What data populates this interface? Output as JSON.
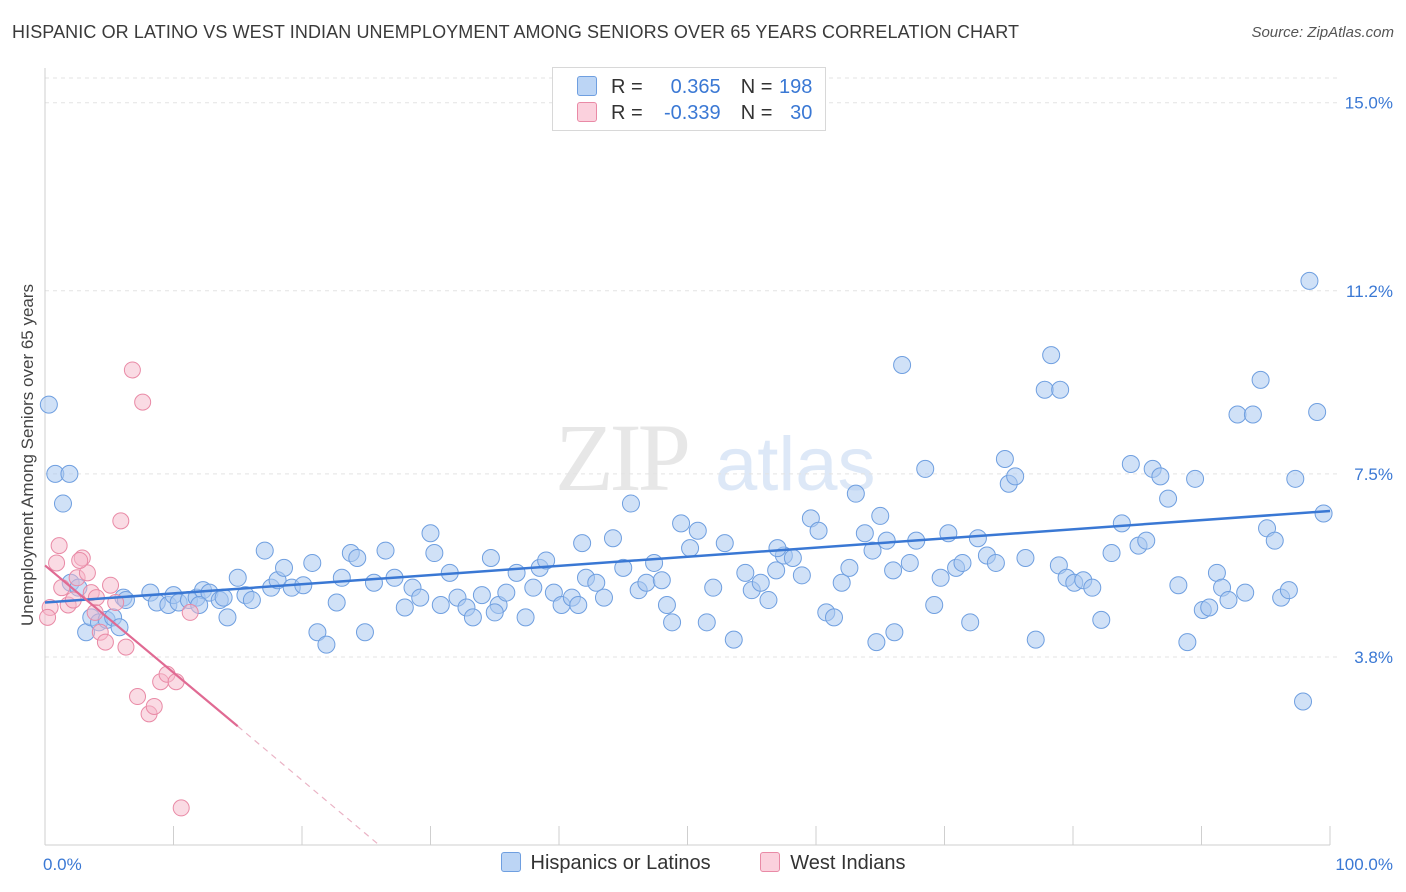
{
  "title": "HISPANIC OR LATINO VS WEST INDIAN UNEMPLOYMENT AMONG SENIORS OVER 65 YEARS CORRELATION CHART",
  "source": "Source: ZipAtlas.com",
  "watermark": {
    "zip": "ZIP",
    "atlas": "atlas"
  },
  "legend_top": {
    "rows": [
      {
        "r_label": "R =",
        "r_value": "0.365",
        "n_label": "N =",
        "n_value": "198"
      },
      {
        "r_label": "R =",
        "r_value": "-0.339",
        "n_label": "N =",
        "n_value": "30"
      }
    ]
  },
  "legend_bottom": [
    {
      "label": "Hispanics or Latinos"
    },
    {
      "label": "West Indians"
    }
  ],
  "colors": {
    "blue_fill": "#a9c8f0",
    "blue_stroke": "#6f9fe0",
    "blue_line": "#3a78d4",
    "pink_fill": "#f6b8c9",
    "pink_stroke": "#e98aa6",
    "pink_line": "#e06a93",
    "tick_label": "#3a78d4",
    "grid": "#e3e3e3"
  },
  "chart_data": {
    "type": "scatter",
    "title": "HISPANIC OR LATINO VS WEST INDIAN UNEMPLOYMENT AMONG SENIORS OVER 65 YEARS CORRELATION CHART",
    "xlabel": "",
    "ylabel": "Unemployment Among Seniors over 65 years",
    "xlim": [
      0,
      100
    ],
    "ylim": [
      0,
      15.5
    ],
    "x_tick_labels": [
      {
        "value": 0,
        "label": "0.0%"
      },
      {
        "value": 100,
        "label": "100.0%"
      }
    ],
    "y_tick_labels": [
      {
        "value": 3.8,
        "label": "3.8%"
      },
      {
        "value": 7.5,
        "label": "7.5%"
      },
      {
        "value": 11.2,
        "label": "11.2%"
      },
      {
        "value": 15.0,
        "label": "15.0%"
      }
    ],
    "grid": "horizontal dashed",
    "legend_placement": "top-center and bottom",
    "series": [
      {
        "name": "Hispanics or Latinos",
        "color": "#6f9fe0",
        "trend": {
          "x": [
            0,
            100
          ],
          "y": [
            4.9,
            6.75
          ]
        },
        "points": [
          [
            0.3,
            8.9
          ],
          [
            0.8,
            7.5
          ],
          [
            1.4,
            6.9
          ],
          [
            2.0,
            5.3
          ],
          [
            2.6,
            5.2
          ],
          [
            3.2,
            4.3
          ],
          [
            3.6,
            4.6
          ],
          [
            4.2,
            4.5
          ],
          [
            4.8,
            4.55
          ],
          [
            5.3,
            4.6
          ],
          [
            5.8,
            4.4
          ],
          [
            6.1,
            5.0
          ],
          [
            6.3,
            4.95
          ],
          [
            8.2,
            5.1
          ],
          [
            8.7,
            4.9
          ],
          [
            9.6,
            4.85
          ],
          [
            10.0,
            5.05
          ],
          [
            10.4,
            4.9
          ],
          [
            11.2,
            4.95
          ],
          [
            11.8,
            5.0
          ],
          [
            12.3,
            5.15
          ],
          [
            12.8,
            5.1
          ],
          [
            13.6,
            4.95
          ],
          [
            13.9,
            5.0
          ],
          [
            14.2,
            4.6
          ],
          [
            15.0,
            5.4
          ],
          [
            15.6,
            5.05
          ],
          [
            16.1,
            4.95
          ],
          [
            17.1,
            5.95
          ],
          [
            17.6,
            5.2
          ],
          [
            18.1,
            5.35
          ],
          [
            18.6,
            5.6
          ],
          [
            19.2,
            5.2
          ],
          [
            20.1,
            5.25
          ],
          [
            20.8,
            5.7
          ],
          [
            21.2,
            4.3
          ],
          [
            21.9,
            4.05
          ],
          [
            22.7,
            4.9
          ],
          [
            23.1,
            5.4
          ],
          [
            23.8,
            5.9
          ],
          [
            24.3,
            5.8
          ],
          [
            24.9,
            4.3
          ],
          [
            25.6,
            5.3
          ],
          [
            26.5,
            5.95
          ],
          [
            27.2,
            5.4
          ],
          [
            28.0,
            4.8
          ],
          [
            28.6,
            5.2
          ],
          [
            29.2,
            5.0
          ],
          [
            30.0,
            6.3
          ],
          [
            30.8,
            4.85
          ],
          [
            31.5,
            5.5
          ],
          [
            32.1,
            5.0
          ],
          [
            32.8,
            4.8
          ],
          [
            33.3,
            4.6
          ],
          [
            34.0,
            5.05
          ],
          [
            34.7,
            5.8
          ],
          [
            35.3,
            4.85
          ],
          [
            35.9,
            5.1
          ],
          [
            36.7,
            5.5
          ],
          [
            37.4,
            4.6
          ],
          [
            38.0,
            5.2
          ],
          [
            38.5,
            5.6
          ],
          [
            39.0,
            5.75
          ],
          [
            39.6,
            5.1
          ],
          [
            40.2,
            4.85
          ],
          [
            41.0,
            5.0
          ],
          [
            41.5,
            4.85
          ],
          [
            42.1,
            5.4
          ],
          [
            42.9,
            5.3
          ],
          [
            43.5,
            5.0
          ],
          [
            44.2,
            6.2
          ],
          [
            45.0,
            5.6
          ],
          [
            45.6,
            6.9
          ],
          [
            46.2,
            5.15
          ],
          [
            46.8,
            5.3
          ],
          [
            47.4,
            5.7
          ],
          [
            48.0,
            5.35
          ],
          [
            48.8,
            4.5
          ],
          [
            49.5,
            6.5
          ],
          [
            50.2,
            6.0
          ],
          [
            50.8,
            6.35
          ],
          [
            51.5,
            4.5
          ],
          [
            52.0,
            5.2
          ],
          [
            52.9,
            6.1
          ],
          [
            53.6,
            4.15
          ],
          [
            54.5,
            5.5
          ],
          [
            55.0,
            5.15
          ],
          [
            55.7,
            5.3
          ],
          [
            56.3,
            4.95
          ],
          [
            56.9,
            5.55
          ],
          [
            57.5,
            5.85
          ],
          [
            58.2,
            5.8
          ],
          [
            58.9,
            5.45
          ],
          [
            59.6,
            6.6
          ],
          [
            60.2,
            6.35
          ],
          [
            60.8,
            4.7
          ],
          [
            61.4,
            4.6
          ],
          [
            62.0,
            5.3
          ],
          [
            62.6,
            5.6
          ],
          [
            63.1,
            7.1
          ],
          [
            63.8,
            6.3
          ],
          [
            64.4,
            5.95
          ],
          [
            65.0,
            6.65
          ],
          [
            65.5,
            6.15
          ],
          [
            66.1,
            4.3
          ],
          [
            66.7,
            9.7
          ],
          [
            67.3,
            5.7
          ],
          [
            67.8,
            6.15
          ],
          [
            68.5,
            7.6
          ],
          [
            69.2,
            4.85
          ],
          [
            69.7,
            5.4
          ],
          [
            70.3,
            6.3
          ],
          [
            70.9,
            5.6
          ],
          [
            71.4,
            5.7
          ],
          [
            72.0,
            4.5
          ],
          [
            72.6,
            6.2
          ],
          [
            73.3,
            5.85
          ],
          [
            74.0,
            5.7
          ],
          [
            74.7,
            7.8
          ],
          [
            75.0,
            7.3
          ],
          [
            75.5,
            7.45
          ],
          [
            76.3,
            5.8
          ],
          [
            77.1,
            4.15
          ],
          [
            77.8,
            9.2
          ],
          [
            78.3,
            9.9
          ],
          [
            78.9,
            5.65
          ],
          [
            79.5,
            5.4
          ],
          [
            80.1,
            5.3
          ],
          [
            80.8,
            5.35
          ],
          [
            81.5,
            5.2
          ],
          [
            82.2,
            4.55
          ],
          [
            83.0,
            5.9
          ],
          [
            83.8,
            6.5
          ],
          [
            84.5,
            7.7
          ],
          [
            85.1,
            6.05
          ],
          [
            85.7,
            6.15
          ],
          [
            86.2,
            7.6
          ],
          [
            86.8,
            7.45
          ],
          [
            87.4,
            7.0
          ],
          [
            88.2,
            5.25
          ],
          [
            88.9,
            4.1
          ],
          [
            89.5,
            7.4
          ],
          [
            90.1,
            4.75
          ],
          [
            90.6,
            4.8
          ],
          [
            91.2,
            5.5
          ],
          [
            91.6,
            5.2
          ],
          [
            92.1,
            4.95
          ],
          [
            92.8,
            8.7
          ],
          [
            93.4,
            5.1
          ],
          [
            94.0,
            8.7
          ],
          [
            94.6,
            9.4
          ],
          [
            95.1,
            6.4
          ],
          [
            95.7,
            6.15
          ],
          [
            96.2,
            5.0
          ],
          [
            96.8,
            5.15
          ],
          [
            97.3,
            7.4
          ],
          [
            97.9,
            2.9
          ],
          [
            98.4,
            11.4
          ],
          [
            99.0,
            8.75
          ],
          [
            99.5,
            6.7
          ],
          [
            1.9,
            7.5
          ],
          [
            12.0,
            4.85
          ],
          [
            30.3,
            5.9
          ],
          [
            48.4,
            4.85
          ],
          [
            64.7,
            4.1
          ],
          [
            79.0,
            9.2
          ],
          [
            66.0,
            5.55
          ],
          [
            57.0,
            6.0
          ],
          [
            41.8,
            6.1
          ],
          [
            35.0,
            4.7
          ]
        ]
      },
      {
        "name": "West Indians",
        "color": "#e98aa6",
        "trend": {
          "x": [
            0,
            15
          ],
          "y": [
            5.65,
            2.4
          ],
          "dashed_extension_to": [
            26,
            0
          ]
        },
        "points": [
          [
            0.4,
            4.8
          ],
          [
            0.9,
            5.7
          ],
          [
            1.3,
            5.2
          ],
          [
            1.8,
            4.85
          ],
          [
            2.2,
            4.95
          ],
          [
            2.5,
            5.4
          ],
          [
            2.9,
            5.8
          ],
          [
            3.3,
            5.5
          ],
          [
            3.6,
            5.1
          ],
          [
            3.9,
            4.7
          ],
          [
            4.3,
            4.3
          ],
          [
            4.7,
            4.1
          ],
          [
            5.1,
            5.25
          ],
          [
            5.5,
            4.9
          ],
          [
            5.9,
            6.55
          ],
          [
            6.3,
            4.0
          ],
          [
            6.8,
            9.6
          ],
          [
            7.2,
            3.0
          ],
          [
            7.6,
            8.95
          ],
          [
            8.1,
            2.65
          ],
          [
            8.5,
            2.8
          ],
          [
            9.0,
            3.3
          ],
          [
            9.5,
            3.45
          ],
          [
            10.2,
            3.3
          ],
          [
            10.6,
            0.75
          ],
          [
            11.3,
            4.7
          ],
          [
            1.1,
            6.05
          ],
          [
            2.7,
            5.75
          ],
          [
            4.0,
            5.0
          ],
          [
            0.2,
            4.6
          ]
        ]
      }
    ]
  }
}
